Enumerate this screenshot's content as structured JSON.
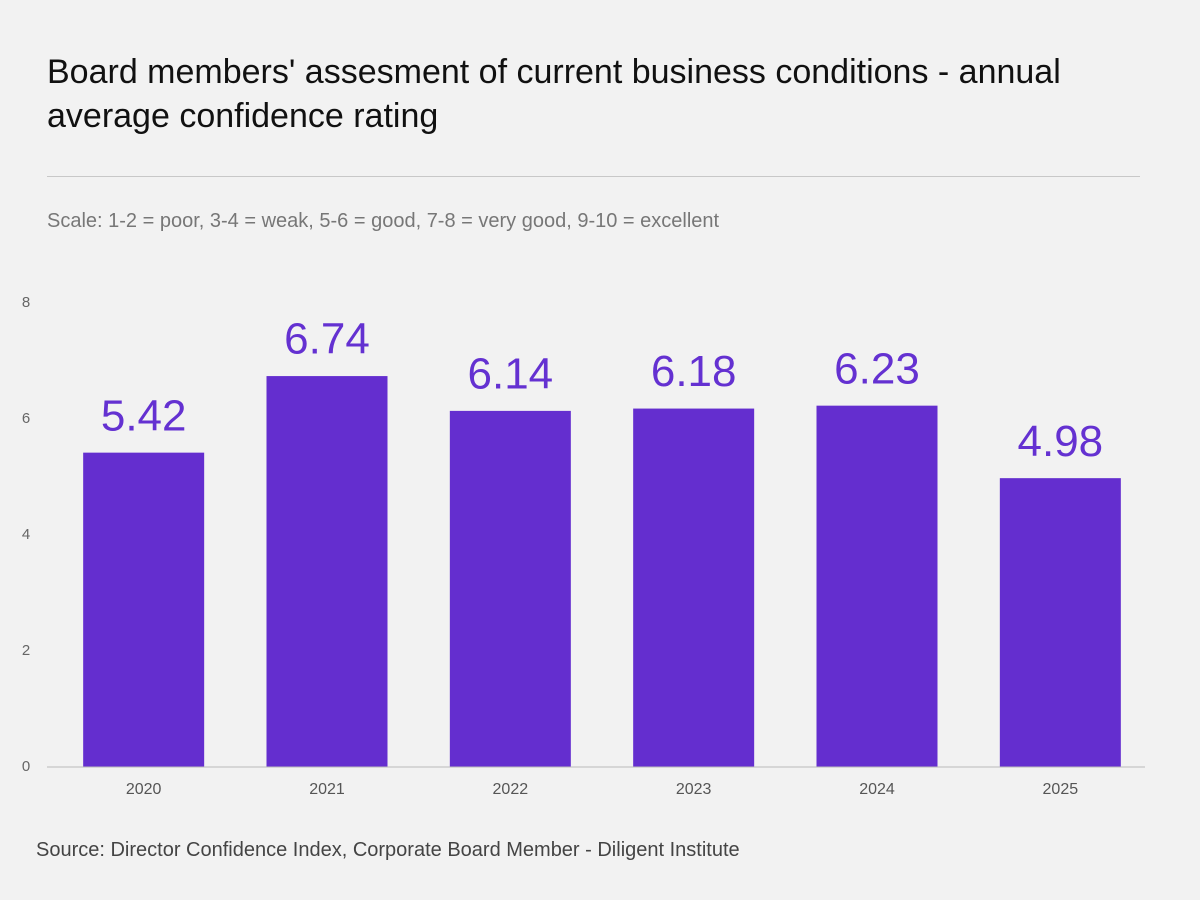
{
  "chart_data": {
    "type": "bar",
    "title": "Board members' assesment of current business conditions - annual average confidence rating",
    "subtitle": "Scale: 1-2 = poor, 3-4 = weak, 5-6 = good, 7-8 = very good, 9-10 = excellent",
    "source": "Source: Director Confidence Index, Corporate Board Member - Diligent Institute",
    "categories": [
      "2020",
      "2021",
      "2022",
      "2023",
      "2024",
      "2025"
    ],
    "values": [
      5.42,
      6.74,
      6.14,
      6.18,
      6.23,
      4.98
    ],
    "color": "#642ecf",
    "ylim": [
      0,
      8
    ],
    "yticks": [
      0,
      2,
      4,
      6,
      8
    ],
    "grid": false
  }
}
